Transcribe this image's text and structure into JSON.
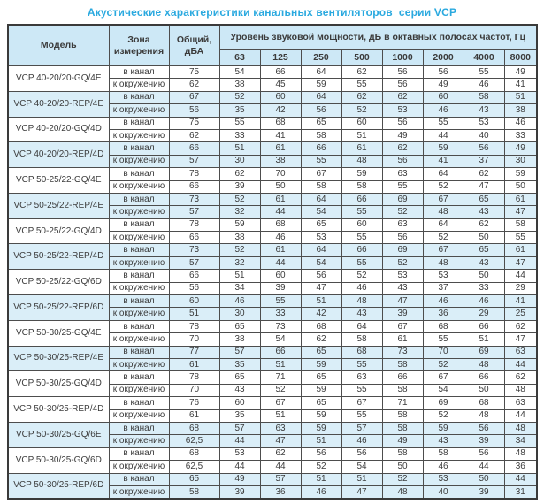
{
  "title": "Акустические характеристики канальных вентиляторов  серии VCP",
  "colors": {
    "title_accent": "#2aa9df",
    "header_bg": "#cde8f6",
    "stripe_bg": "#daeef8",
    "grid_border": "#4d4d4d"
  },
  "table": {
    "headers": {
      "model": "Модель",
      "zone": "Зона измерения",
      "total": "Общий, дБА",
      "spl_group": "Уровень звуковой мощности, дБ в октавных полосах частот, Гц",
      "frequencies": [
        "63",
        "125",
        "250",
        "500",
        "1000",
        "2000",
        "4000",
        "8000"
      ]
    },
    "zone_in_duct": "в канал",
    "zone_to_env": "к окружению",
    "models": [
      {
        "name": "VCP 40-20/20-GQ/4E",
        "shaded": false,
        "in_duct": {
          "total": "75",
          "levels": [
            54,
            66,
            64,
            62,
            56,
            56,
            55,
            49
          ]
        },
        "to_env": {
          "total": "62",
          "levels": [
            38,
            45,
            59,
            55,
            56,
            49,
            46,
            41
          ]
        }
      },
      {
        "name": "VCP 40-20/20-REP/4E",
        "shaded": true,
        "in_duct": {
          "total": "67",
          "levels": [
            52,
            60,
            64,
            62,
            62,
            60,
            58,
            51
          ]
        },
        "to_env": {
          "total": "56",
          "levels": [
            35,
            42,
            56,
            52,
            53,
            46,
            43,
            38
          ]
        }
      },
      {
        "name": "VCP 40-20/20-GQ/4D",
        "shaded": false,
        "in_duct": {
          "total": "75",
          "levels": [
            55,
            68,
            65,
            60,
            56,
            55,
            53,
            46
          ]
        },
        "to_env": {
          "total": "62",
          "levels": [
            33,
            41,
            58,
            51,
            49,
            44,
            40,
            33
          ]
        }
      },
      {
        "name": "VCP 40-20/20-REP/4D",
        "shaded": true,
        "in_duct": {
          "total": "66",
          "levels": [
            51,
            61,
            66,
            61,
            62,
            59,
            56,
            49
          ]
        },
        "to_env": {
          "total": "57",
          "levels": [
            30,
            38,
            55,
            48,
            56,
            41,
            37,
            30
          ]
        }
      },
      {
        "name": "VCP 50-25/22-GQ/4E",
        "shaded": false,
        "in_duct": {
          "total": "78",
          "levels": [
            62,
            70,
            67,
            59,
            63,
            64,
            62,
            59
          ]
        },
        "to_env": {
          "total": "66",
          "levels": [
            39,
            50,
            58,
            58,
            55,
            52,
            47,
            50
          ]
        }
      },
      {
        "name": "VCP 50-25/22-REP/4E",
        "shaded": true,
        "in_duct": {
          "total": "73",
          "levels": [
            52,
            61,
            64,
            66,
            69,
            67,
            65,
            61
          ]
        },
        "to_env": {
          "total": "57",
          "levels": [
            32,
            44,
            54,
            55,
            52,
            48,
            43,
            47
          ]
        }
      },
      {
        "name": "VCP 50-25/22-GQ/4D",
        "shaded": false,
        "in_duct": {
          "total": "78",
          "levels": [
            59,
            68,
            65,
            60,
            63,
            64,
            62,
            58
          ]
        },
        "to_env": {
          "total": "66",
          "levels": [
            38,
            46,
            53,
            55,
            56,
            52,
            50,
            55
          ]
        }
      },
      {
        "name": "VCP 50-25/22-REP/4D",
        "shaded": true,
        "in_duct": {
          "total": "73",
          "levels": [
            52,
            61,
            64,
            66,
            69,
            67,
            65,
            61
          ]
        },
        "to_env": {
          "total": "57",
          "levels": [
            32,
            44,
            54,
            55,
            52,
            48,
            43,
            47
          ]
        }
      },
      {
        "name": "VCP 50-25/22-GQ/6D",
        "shaded": false,
        "in_duct": {
          "total": "66",
          "levels": [
            51,
            60,
            56,
            52,
            53,
            53,
            50,
            44
          ]
        },
        "to_env": {
          "total": "56",
          "levels": [
            34,
            39,
            47,
            46,
            43,
            37,
            33,
            29
          ]
        }
      },
      {
        "name": "VCP 50-25/22-REP/6D",
        "shaded": true,
        "in_duct": {
          "total": "60",
          "levels": [
            46,
            55,
            51,
            48,
            47,
            46,
            46,
            41
          ]
        },
        "to_env": {
          "total": "51",
          "levels": [
            30,
            33,
            42,
            43,
            39,
            36,
            29,
            25
          ]
        }
      },
      {
        "name": "VCP 50-30/25-GQ/4E",
        "shaded": false,
        "in_duct": {
          "total": "78",
          "levels": [
            65,
            73,
            68,
            64,
            67,
            68,
            66,
            62
          ]
        },
        "to_env": {
          "total": "70",
          "levels": [
            38,
            54,
            62,
            58,
            61,
            55,
            51,
            47
          ]
        }
      },
      {
        "name": "VCP 50-30/25-REP/4E",
        "shaded": true,
        "in_duct": {
          "total": "77",
          "levels": [
            57,
            66,
            65,
            68,
            73,
            70,
            69,
            63
          ]
        },
        "to_env": {
          "total": "61",
          "levels": [
            35,
            51,
            59,
            55,
            58,
            52,
            48,
            44
          ]
        }
      },
      {
        "name": "VCP 50-30/25-GQ/4D",
        "shaded": false,
        "in_duct": {
          "total": "78",
          "levels": [
            65,
            71,
            65,
            63,
            66,
            67,
            66,
            62
          ]
        },
        "to_env": {
          "total": "70",
          "levels": [
            43,
            52,
            59,
            55,
            58,
            54,
            50,
            48
          ]
        }
      },
      {
        "name": "VCP 50-30/25-REP/4D",
        "shaded": false,
        "in_duct": {
          "total": "76",
          "levels": [
            60,
            67,
            65,
            67,
            71,
            69,
            68,
            63
          ]
        },
        "to_env": {
          "total": "61",
          "levels": [
            35,
            51,
            59,
            55,
            58,
            52,
            48,
            44
          ]
        }
      },
      {
        "name": "VCP 50-30/25-GQ/6E",
        "shaded": true,
        "in_duct": {
          "total": "68",
          "levels": [
            57,
            63,
            59,
            57,
            58,
            59,
            56,
            48
          ]
        },
        "to_env": {
          "total": "62,5",
          "levels": [
            44,
            47,
            51,
            46,
            49,
            43,
            39,
            34
          ]
        }
      },
      {
        "name": "VCP 50-30/25-GQ/6D",
        "shaded": false,
        "in_duct": {
          "total": "68",
          "levels": [
            53,
            62,
            56,
            56,
            58,
            58,
            56,
            48
          ]
        },
        "to_env": {
          "total": "62,5",
          "levels": [
            44,
            44,
            52,
            54,
            50,
            46,
            44,
            36
          ]
        }
      },
      {
        "name": "VCP 50-30/25-REP/6D",
        "shaded": true,
        "in_duct": {
          "total": "65",
          "levels": [
            49,
            57,
            51,
            51,
            52,
            53,
            50,
            44
          ]
        },
        "to_env": {
          "total": "58",
          "levels": [
            39,
            36,
            46,
            47,
            48,
            40,
            39,
            31
          ]
        }
      }
    ]
  }
}
